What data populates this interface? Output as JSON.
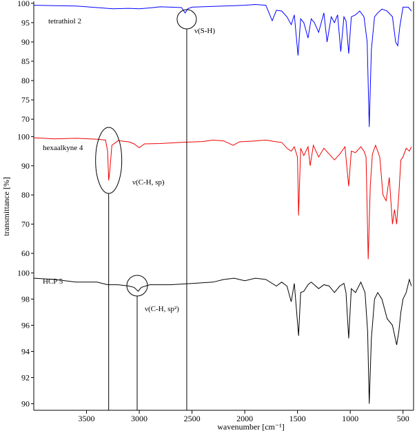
{
  "chart_data": {
    "type": "line",
    "xlabel": "wavenumber [cm⁻¹]",
    "ylabel": "transmittance [%]",
    "x_ticks": [
      3500,
      3000,
      2500,
      2000,
      1500,
      1000,
      500
    ],
    "xlim": [
      4000,
      400
    ],
    "grid": false,
    "panels": [
      {
        "name": "tetrathiol 2",
        "color": "#0000ff",
        "ylim": [
          67,
          100.5
        ],
        "y_ticks": [
          100,
          95,
          90,
          85,
          80,
          75,
          70
        ],
        "points": [
          [
            4000,
            99.5
          ],
          [
            3800,
            99.4
          ],
          [
            3600,
            99.3
          ],
          [
            3400,
            98.9
          ],
          [
            3250,
            98.6
          ],
          [
            3100,
            98.7
          ],
          [
            3000,
            98.6
          ],
          [
            2900,
            98.8
          ],
          [
            2800,
            99.1
          ],
          [
            2700,
            99.0
          ],
          [
            2600,
            98.9
          ],
          [
            2565,
            97.5
          ],
          [
            2540,
            98.6
          ],
          [
            2500,
            99.0
          ],
          [
            2300,
            99.2
          ],
          [
            2100,
            99.4
          ],
          [
            2000,
            99.5
          ],
          [
            1900,
            99.7
          ],
          [
            1800,
            99.5
          ],
          [
            1740,
            95.5
          ],
          [
            1700,
            98.2
          ],
          [
            1650,
            98.0
          ],
          [
            1600,
            96.5
          ],
          [
            1560,
            94.5
          ],
          [
            1530,
            97.0
          ],
          [
            1495,
            86.5
          ],
          [
            1470,
            96.0
          ],
          [
            1440,
            95.0
          ],
          [
            1400,
            91.0
          ],
          [
            1370,
            96.0
          ],
          [
            1340,
            95.0
          ],
          [
            1300,
            92.5
          ],
          [
            1250,
            97.5
          ],
          [
            1220,
            90.0
          ],
          [
            1180,
            96.5
          ],
          [
            1150,
            95.0
          ],
          [
            1120,
            97.0
          ],
          [
            1090,
            87.5
          ],
          [
            1060,
            96.5
          ],
          [
            1040,
            95.5
          ],
          [
            1015,
            87.0
          ],
          [
            990,
            96.5
          ],
          [
            950,
            97.0
          ],
          [
            910,
            98.0
          ],
          [
            870,
            96.5
          ],
          [
            840,
            90.0
          ],
          [
            820,
            68.0
          ],
          [
            800,
            88.0
          ],
          [
            770,
            96.5
          ],
          [
            740,
            97.5
          ],
          [
            700,
            98.5
          ],
          [
            650,
            98.0
          ],
          [
            600,
            96.5
          ],
          [
            570,
            90.0
          ],
          [
            550,
            89.0
          ],
          [
            530,
            94.0
          ],
          [
            500,
            99.0
          ],
          [
            450,
            99.0
          ],
          [
            420,
            98.0
          ]
        ]
      },
      {
        "name": "hexaalkyne 4",
        "color": "#ee0000",
        "ylim": [
          56,
          101.5
        ],
        "y_ticks": [
          100,
          90,
          80,
          70,
          60
        ],
        "points": [
          [
            4000,
            99.6
          ],
          [
            3800,
            99.2
          ],
          [
            3600,
            99.4
          ],
          [
            3400,
            99.1
          ],
          [
            3320,
            98.8
          ],
          [
            3300,
            95.0
          ],
          [
            3290,
            85.0
          ],
          [
            3280,
            88.0
          ],
          [
            3260,
            97.0
          ],
          [
            3200,
            98.6
          ],
          [
            3100,
            98.2
          ],
          [
            3050,
            97.5
          ],
          [
            3000,
            96.2
          ],
          [
            2950,
            97.5
          ],
          [
            2800,
            97.6
          ],
          [
            2600,
            98.0
          ],
          [
            2400,
            98.3
          ],
          [
            2300,
            98.8
          ],
          [
            2200,
            98.5
          ],
          [
            2110,
            97.0
          ],
          [
            2050,
            98.2
          ],
          [
            1900,
            98.5
          ],
          [
            1800,
            98.8
          ],
          [
            1700,
            98.2
          ],
          [
            1650,
            98.0
          ],
          [
            1600,
            96.0
          ],
          [
            1560,
            95.0
          ],
          [
            1530,
            96.5
          ],
          [
            1500,
            93.0
          ],
          [
            1490,
            73.0
          ],
          [
            1470,
            96.0
          ],
          [
            1440,
            93.5
          ],
          [
            1400,
            96.5
          ],
          [
            1380,
            90.0
          ],
          [
            1350,
            97.0
          ],
          [
            1300,
            93.0
          ],
          [
            1250,
            96.0
          ],
          [
            1200,
            94.0
          ],
          [
            1150,
            92.0
          ],
          [
            1100,
            94.0
          ],
          [
            1050,
            96.5
          ],
          [
            1015,
            83.0
          ],
          [
            990,
            95.0
          ],
          [
            950,
            94.5
          ],
          [
            900,
            96.5
          ],
          [
            870,
            95.0
          ],
          [
            850,
            93.0
          ],
          [
            830,
            58.0
          ],
          [
            810,
            83.0
          ],
          [
            790,
            94.0
          ],
          [
            760,
            97.0
          ],
          [
            720,
            93.0
          ],
          [
            690,
            80.0
          ],
          [
            660,
            78.0
          ],
          [
            630,
            86.0
          ],
          [
            600,
            70.0
          ],
          [
            580,
            75.0
          ],
          [
            560,
            70.0
          ],
          [
            540,
            80.0
          ],
          [
            520,
            92.0
          ],
          [
            500,
            93.0
          ],
          [
            470,
            96.0
          ],
          [
            440,
            95.0
          ],
          [
            420,
            96.5
          ]
        ]
      },
      {
        "name": "HCP 5",
        "color": "#000000",
        "ylim": [
          89.5,
          100.5
        ],
        "y_ticks": [
          100,
          98,
          96,
          94,
          92,
          90
        ],
        "points": [
          [
            4000,
            99.6
          ],
          [
            3800,
            99.5
          ],
          [
            3600,
            99.3
          ],
          [
            3400,
            99.3
          ],
          [
            3300,
            99.1
          ],
          [
            3200,
            99.1
          ],
          [
            3100,
            99.0
          ],
          [
            3050,
            98.9
          ],
          [
            3010,
            98.6
          ],
          [
            2980,
            98.9
          ],
          [
            2900,
            99.1
          ],
          [
            2700,
            99.1
          ],
          [
            2500,
            99.2
          ],
          [
            2300,
            99.3
          ],
          [
            2200,
            99.5
          ],
          [
            2100,
            99.6
          ],
          [
            2000,
            99.4
          ],
          [
            1900,
            99.6
          ],
          [
            1800,
            99.5
          ],
          [
            1700,
            99.0
          ],
          [
            1650,
            99.3
          ],
          [
            1600,
            99.0
          ],
          [
            1560,
            97.8
          ],
          [
            1530,
            99.2
          ],
          [
            1490,
            95.2
          ],
          [
            1470,
            98.5
          ],
          [
            1440,
            98.6
          ],
          [
            1400,
            99.1
          ],
          [
            1370,
            99.3
          ],
          [
            1300,
            98.8
          ],
          [
            1250,
            99.1
          ],
          [
            1200,
            99.0
          ],
          [
            1150,
            98.5
          ],
          [
            1100,
            99.0
          ],
          [
            1060,
            99.2
          ],
          [
            1040,
            98.5
          ],
          [
            1015,
            95.0
          ],
          [
            990,
            98.8
          ],
          [
            950,
            98.5
          ],
          [
            900,
            99.3
          ],
          [
            860,
            98.5
          ],
          [
            835,
            95.5
          ],
          [
            820,
            90.0
          ],
          [
            800,
            95.0
          ],
          [
            770,
            98.0
          ],
          [
            740,
            98.5
          ],
          [
            700,
            98.0
          ],
          [
            650,
            96.5
          ],
          [
            600,
            96.0
          ],
          [
            560,
            94.5
          ],
          [
            540,
            95.5
          ],
          [
            520,
            97.0
          ],
          [
            500,
            98.0
          ],
          [
            470,
            98.5
          ],
          [
            440,
            99.5
          ],
          [
            420,
            99.0
          ]
        ]
      }
    ],
    "annotations": [
      {
        "name": "nu-s-h",
        "text": "ν(S-H)",
        "x": 2550,
        "panel": 0
      },
      {
        "name": "nu-c-h-sp",
        "text": "ν(C-H, sp)",
        "x": 3290,
        "panel": 1
      },
      {
        "name": "nu-c-h-sp2",
        "text": "ν(C-H, sp²)",
        "x": 3020,
        "panel": 2
      }
    ]
  }
}
